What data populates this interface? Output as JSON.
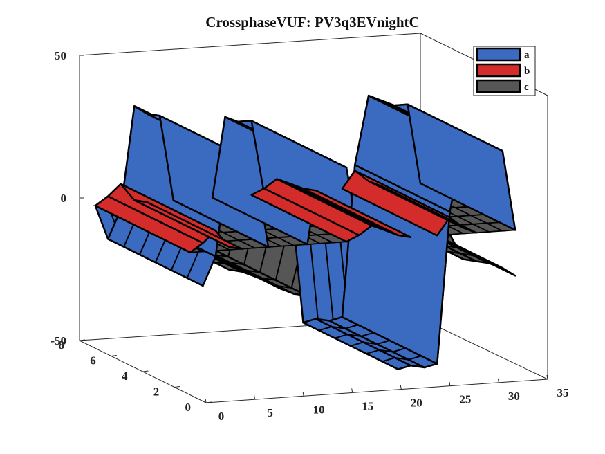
{
  "chart_data": {
    "type": "surface3d",
    "title": "CrossphaseVUF: PV3q3EVnightC",
    "xlabel": "",
    "ylabel": "",
    "zlabel": "",
    "xlim": [
      0,
      35
    ],
    "ylim": [
      0,
      8
    ],
    "zlim": [
      -50,
      50
    ],
    "x_ticks": [
      "0",
      "5",
      "10",
      "15",
      "20",
      "25",
      "30",
      "35"
    ],
    "y_ticks": [
      "0",
      "2",
      "4",
      "6",
      "8"
    ],
    "z_ticks": [
      "-50",
      "0",
      "50"
    ],
    "legend_position": "top-right",
    "grid": false,
    "series": [
      {
        "name": "a",
        "color": "#3A6BC1",
        "values": [
          0,
          -12,
          -2,
          34,
          31,
          30,
          0,
          0,
          0,
          0,
          28,
          26,
          26,
          0,
          0,
          0,
          -46,
          -45,
          -46,
          -45,
          8,
          32,
          30,
          28,
          28,
          0
        ]
      },
      {
        "name": "b",
        "color": "#D42B2B",
        "values": [
          0,
          3,
          7,
          1,
          0,
          0,
          0,
          0,
          0,
          0,
          0,
          0,
          0,
          2,
          5,
          3,
          1,
          0,
          0,
          0,
          6,
          2,
          0,
          0,
          0,
          0
        ]
      },
      {
        "name": "c",
        "color": "#565656",
        "values": [
          0,
          -2,
          -3,
          -7,
          -8,
          -10,
          -12,
          -15,
          -17,
          -18,
          0,
          0,
          0,
          -3,
          -5,
          -6,
          -4,
          -3,
          -20,
          -8,
          0,
          -9,
          -10,
          -11,
          -13,
          -16
        ]
      }
    ],
    "x": [
      0,
      1.3,
      2.6,
      4,
      5.3,
      6.6,
      8,
      9.3,
      10.6,
      12,
      13.3,
      14.6,
      16,
      17.3,
      18.6,
      20,
      21.3,
      22.6,
      24,
      25.3,
      26.6,
      28,
      29.3,
      30.6,
      32,
      33.3
    ]
  }
}
